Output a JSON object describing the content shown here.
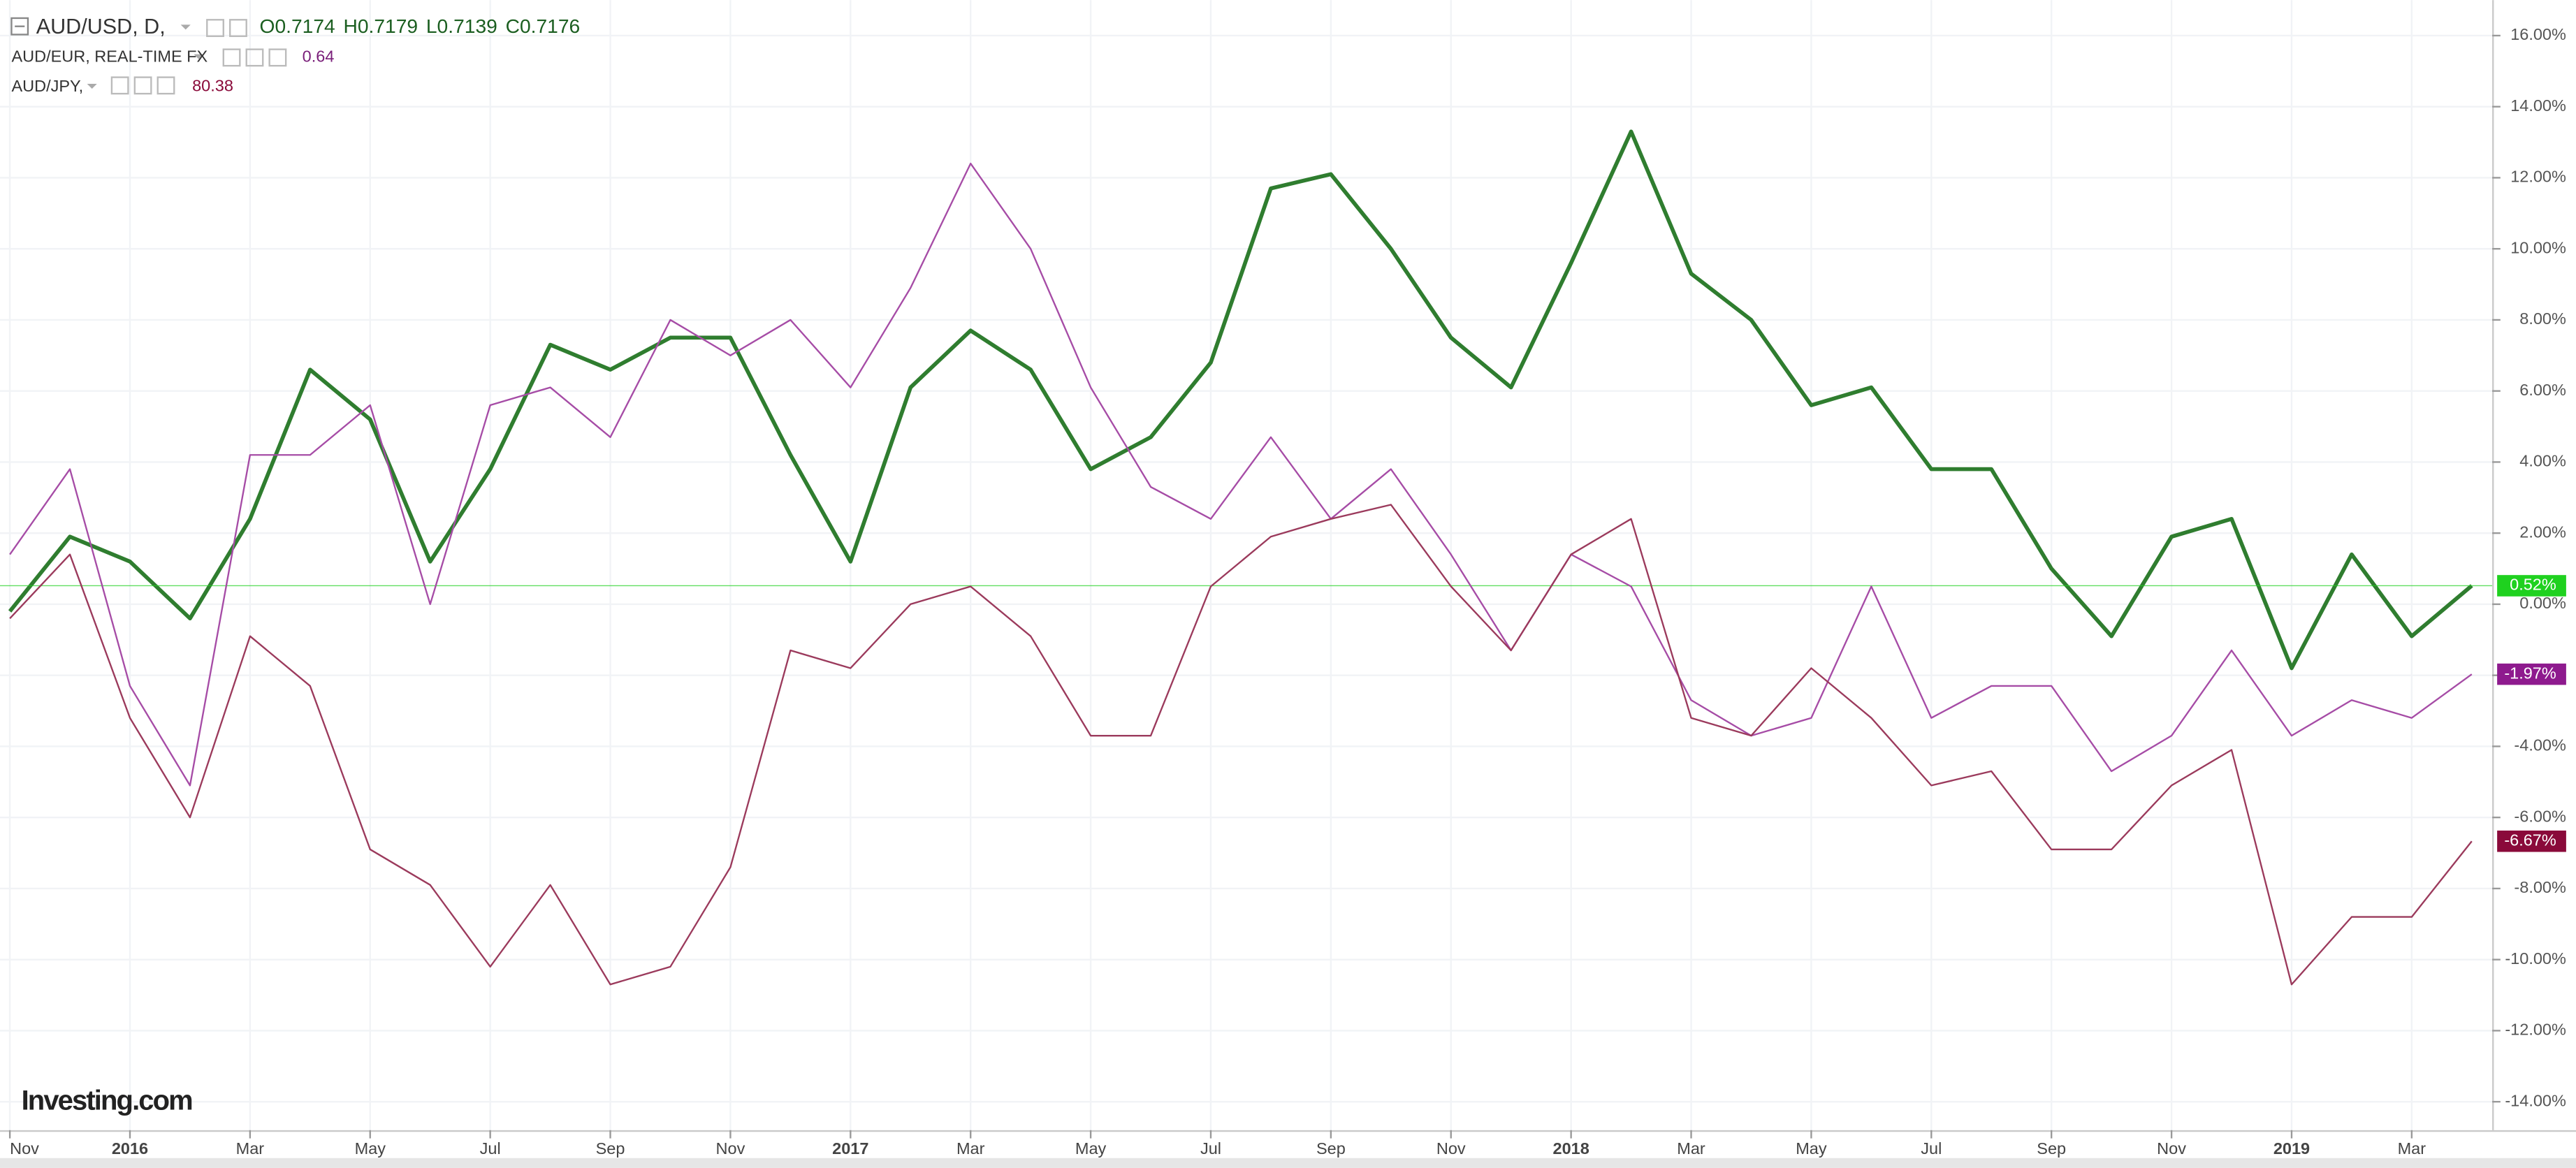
{
  "chart_data": {
    "type": "line",
    "legend": [
      {
        "symbol": "AUD/USD, D,",
        "quote": [
          "O0.7174",
          "H0.7179",
          "L0.7139",
          "C0.7176"
        ]
      },
      {
        "symbol": "AUD/EUR, REAL-TIME FX",
        "quote": [
          "0.64"
        ]
      },
      {
        "symbol": "AUD/JPY,",
        "quote": [
          "80.38"
        ]
      }
    ],
    "logo": "Investing.com",
    "x": [
      "2015-11",
      "2015-12",
      "2016-01",
      "2016-02",
      "2016-03",
      "2016-04",
      "2016-05",
      "2016-06",
      "2016-07",
      "2016-08",
      "2016-09",
      "2016-10",
      "2016-11",
      "2016-12",
      "2017-01",
      "2017-02",
      "2017-03",
      "2017-04",
      "2017-05",
      "2017-06",
      "2017-07",
      "2017-08",
      "2017-09",
      "2017-10",
      "2017-11",
      "2017-12",
      "2018-01",
      "2018-02",
      "2018-03",
      "2018-04",
      "2018-05",
      "2018-06",
      "2018-07",
      "2018-08",
      "2018-09",
      "2018-10",
      "2018-11",
      "2018-12",
      "2019-01",
      "2019-02",
      "2019-03",
      "2019-04"
    ],
    "series": [
      {
        "name": "AUD/USD",
        "color": "#2f7d2f",
        "end_label": "0.52%",
        "end_color": "#1fd11f",
        "values": [
          -0.2,
          1.9,
          1.2,
          -0.4,
          2.4,
          6.6,
          5.2,
          1.2,
          3.8,
          7.3,
          6.6,
          7.5,
          7.5,
          4.2,
          1.2,
          6.1,
          7.7,
          6.6,
          3.8,
          4.7,
          6.8,
          11.7,
          12.1,
          10.0,
          7.5,
          6.1,
          9.6,
          13.3,
          9.3,
          8.0,
          5.6,
          6.1,
          3.8,
          3.8,
          1.0,
          -0.9,
          1.9,
          2.4,
          -1.8,
          1.4,
          -0.9,
          0.52
        ]
      },
      {
        "name": "AUD/EUR",
        "color": "#a64ca6",
        "end_label": "-1.97%",
        "end_color": "#8e1a8e",
        "values": [
          1.4,
          3.8,
          -2.3,
          -5.1,
          4.2,
          4.2,
          5.6,
          0.0,
          5.6,
          6.1,
          4.7,
          8.0,
          7.0,
          8.0,
          6.1,
          8.9,
          12.4,
          10.0,
          6.1,
          3.3,
          2.4,
          4.7,
          2.4,
          3.8,
          1.4,
          -1.3,
          1.4,
          0.5,
          -2.7,
          -3.7,
          -3.2,
          0.5,
          -3.2,
          -2.3,
          -2.3,
          -4.7,
          -3.7,
          -1.3,
          -3.7,
          -2.7,
          -3.2,
          -1.97
        ]
      },
      {
        "name": "AUD/JPY",
        "color": "#9b3a5c",
        "end_label": "-6.67%",
        "end_color": "#8a0a3a",
        "values": [
          -0.4,
          1.4,
          -3.2,
          -6.0,
          -0.9,
          -2.3,
          -6.9,
          -7.9,
          -10.2,
          -7.9,
          -10.7,
          -10.2,
          -7.4,
          -1.3,
          -1.8,
          0.0,
          0.5,
          -0.9,
          -3.7,
          -3.7,
          0.5,
          1.9,
          2.4,
          2.8,
          0.5,
          -1.3,
          1.4,
          2.4,
          -3.2,
          -3.7,
          -1.8,
          -3.2,
          -5.1,
          -4.7,
          -6.9,
          -6.9,
          -5.1,
          -4.1,
          -10.7,
          -8.8,
          -8.8,
          -6.67
        ]
      }
    ],
    "xticks": [
      {
        "value": "2015-11",
        "label": "Nov"
      },
      {
        "value": "2016-01",
        "label": "2016"
      },
      {
        "value": "2016-03",
        "label": "Mar"
      },
      {
        "value": "2016-05",
        "label": "May"
      },
      {
        "value": "2016-07",
        "label": "Jul"
      },
      {
        "value": "2016-09",
        "label": "Sep"
      },
      {
        "value": "2016-11",
        "label": "Nov"
      },
      {
        "value": "2017-01",
        "label": "2017"
      },
      {
        "value": "2017-03",
        "label": "Mar"
      },
      {
        "value": "2017-05",
        "label": "May"
      },
      {
        "value": "2017-07",
        "label": "Jul"
      },
      {
        "value": "2017-09",
        "label": "Sep"
      },
      {
        "value": "2017-11",
        "label": "Nov"
      },
      {
        "value": "2018-01",
        "label": "2018"
      },
      {
        "value": "2018-03",
        "label": "Mar"
      },
      {
        "value": "2018-05",
        "label": "May"
      },
      {
        "value": "2018-07",
        "label": "Jul"
      },
      {
        "value": "2018-09",
        "label": "Sep"
      },
      {
        "value": "2018-11",
        "label": "Nov"
      },
      {
        "value": "2019-01",
        "label": "2019"
      },
      {
        "value": "2019-03",
        "label": "Mar"
      }
    ],
    "ylim": [
      -14.8,
      17.0
    ],
    "yticks": [
      {
        "value": -14,
        "label": "-14.00%"
      },
      {
        "value": -12,
        "label": "-12.00%"
      },
      {
        "value": -10,
        "label": "-10.00%"
      },
      {
        "value": -8,
        "label": "-8.00%"
      },
      {
        "value": -6,
        "label": "-6.00%"
      },
      {
        "value": -4,
        "label": "-4.00%"
      },
      {
        "value": -2,
        "label": "-2.00%"
      },
      {
        "value": 0,
        "label": "0.00%"
      },
      {
        "value": 2,
        "label": "2.00%"
      },
      {
        "value": 4,
        "label": "4.00%"
      },
      {
        "value": 6,
        "label": "6.00%"
      },
      {
        "value": 8,
        "label": "8.00%"
      },
      {
        "value": 10,
        "label": "10.00%"
      },
      {
        "value": 12,
        "label": "12.00%"
      },
      {
        "value": 14,
        "label": "14.00%"
      },
      {
        "value": 16,
        "label": "16.00%"
      }
    ],
    "grid": true
  }
}
